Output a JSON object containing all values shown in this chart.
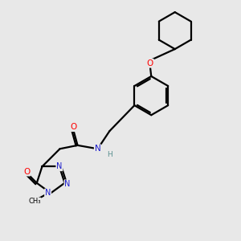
{
  "background_color": "#e8e8e8",
  "bond_color": "#000000",
  "atom_colors": {
    "O": "#ff0000",
    "N": "#1a1acc",
    "H": "#5a9090",
    "C": "#000000"
  },
  "lw": 1.6
}
